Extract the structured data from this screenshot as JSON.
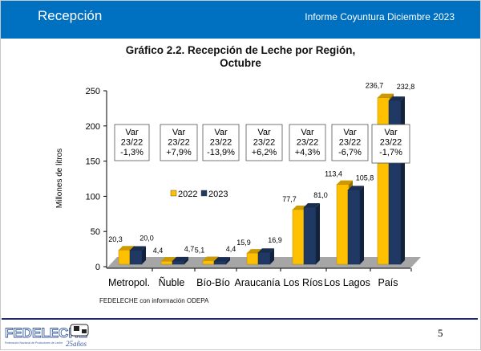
{
  "header": {
    "section": "Recepción",
    "report": "Informe Coyuntura Diciembre 2023"
  },
  "chart_data": {
    "type": "bar",
    "title_line1": "Gráfico 2.2. Recepción de Leche por Región,",
    "title_line2": "Octubre",
    "ylabel": "Millones de litros",
    "ylim": [
      0,
      250
    ],
    "yticks": [
      0,
      50,
      100,
      150,
      200,
      250
    ],
    "categories": [
      "Metropol.",
      "Ñuble",
      "Bío-Bío",
      "Araucanía",
      "Los Ríos",
      "Los Lagos",
      "País"
    ],
    "series": [
      {
        "name": "2022",
        "color": "#ffc000",
        "values": [
          20.3,
          4.4,
          5.1,
          15.9,
          77.7,
          113.4,
          236.7
        ],
        "labels": [
          "20,3",
          "4,4",
          "5,1",
          "15,9",
          "77,7",
          "113,4",
          "236,7"
        ]
      },
      {
        "name": "2023",
        "color": "#1f3864",
        "values": [
          20.0,
          4.7,
          4.4,
          16.9,
          81.0,
          105.8,
          232.8
        ],
        "labels": [
          "20,0",
          "4,7",
          "4,4",
          "16,9",
          "81,0",
          "105,8",
          "232,8"
        ]
      }
    ],
    "annotations": [
      [
        "Var",
        "23/22",
        "-1,3%"
      ],
      [
        "Var",
        "23/22",
        "+7,9%"
      ],
      [
        "Var",
        "23/22",
        "-13,9%"
      ],
      [
        "Var",
        "23/22",
        "+6,2%"
      ],
      [
        "Var",
        "23/22",
        "+4,3%"
      ],
      [
        "Var",
        "23/22",
        "-6,7%"
      ],
      [
        "Var",
        "23/22",
        "-1,7%"
      ]
    ],
    "legend_placement": "center",
    "style": "3d-clustered-column",
    "grid": false
  },
  "source": "FEDELECHE con información ODEPA",
  "footer": {
    "logo_text": "FEDELECHE",
    "logo_sub": "Federación Nacional de Productores de Leche",
    "logo_anniv": "25años",
    "page": "5"
  }
}
